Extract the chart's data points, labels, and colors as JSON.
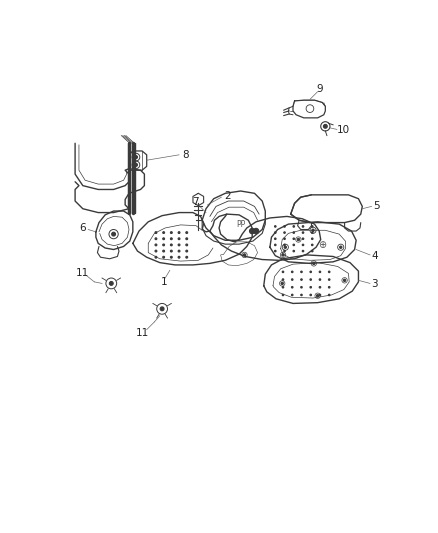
{
  "background_color": "#ffffff",
  "line_color": "#3a3a3a",
  "label_color": "#222222",
  "figsize": [
    4.38,
    5.33
  ],
  "dpi": 100,
  "font_size": 7.5
}
